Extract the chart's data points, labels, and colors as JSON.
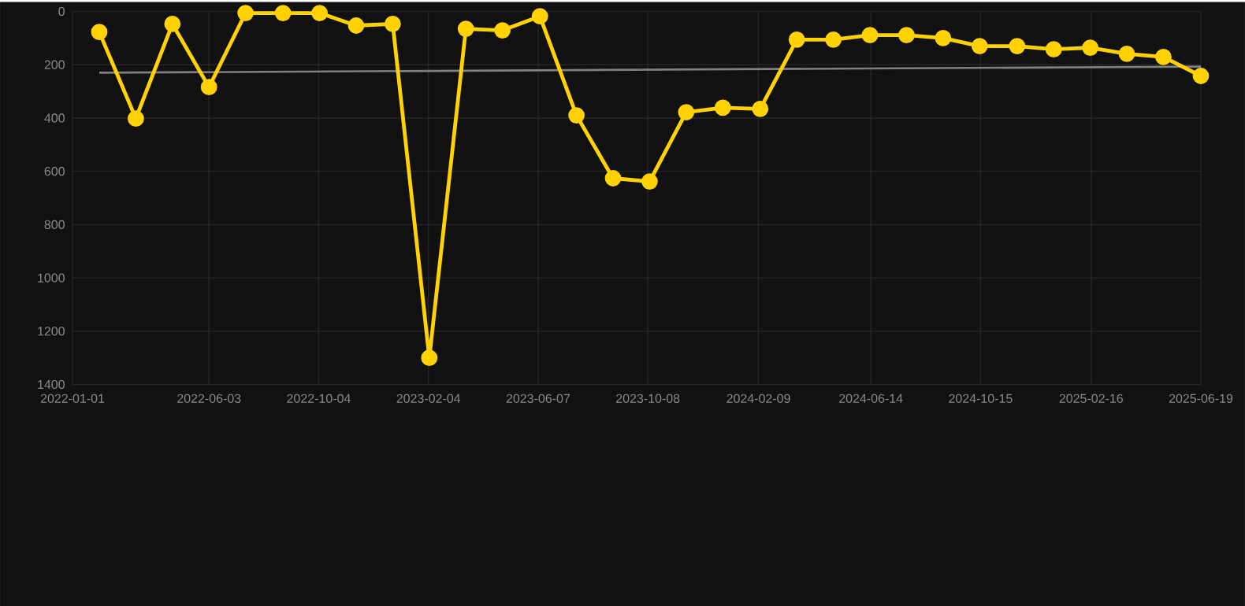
{
  "chart_data": {
    "type": "line",
    "x": [
      "2022-01-31",
      "2022-03-13",
      "2022-04-23",
      "2022-06-03",
      "2022-07-14",
      "2022-08-25",
      "2022-10-05",
      "2022-11-15",
      "2022-12-26",
      "2023-02-05",
      "2023-03-18",
      "2023-04-28",
      "2023-06-09",
      "2023-07-20",
      "2023-08-30",
      "2023-10-10",
      "2023-11-20",
      "2023-12-31",
      "2024-02-11",
      "2024-03-23",
      "2024-05-03",
      "2024-06-13",
      "2024-07-24",
      "2024-09-03",
      "2024-10-14",
      "2024-11-25",
      "2025-01-05",
      "2025-02-15",
      "2025-03-28",
      "2025-05-08",
      "2025-06-19"
    ],
    "series": [
      {
        "color": "#ffd200",
        "values": [
          77,
          402,
          47,
          284,
          6,
          6,
          6,
          53,
          47,
          1300,
          65,
          71,
          18,
          390,
          626,
          638,
          378,
          361,
          366,
          106,
          106,
          89,
          89,
          100,
          130,
          130,
          142,
          136,
          159,
          171,
          242
        ]
      },
      {
        "type": "line",
        "marker": "none",
        "color": "#808080",
        "x": [
          "2022-01-31",
          "2025-06-19"
        ],
        "values": [
          230,
          207
        ]
      }
    ],
    "marker": "circle",
    "grid": true,
    "ylim": [
      1400,
      0
    ],
    "yticks": [
      0,
      200,
      400,
      600,
      800,
      1000,
      1200,
      1400
    ],
    "xlim": [
      "2022-01-01",
      "2025-06-19"
    ],
    "xticks": [
      "2022-01-01",
      "2022-06-03",
      "2022-10-04",
      "2023-02-04",
      "2023-06-07",
      "2023-10-08",
      "2024-02-09",
      "2024-06-14",
      "2024-10-15",
      "2025-02-16",
      "2025-06-19"
    ]
  }
}
